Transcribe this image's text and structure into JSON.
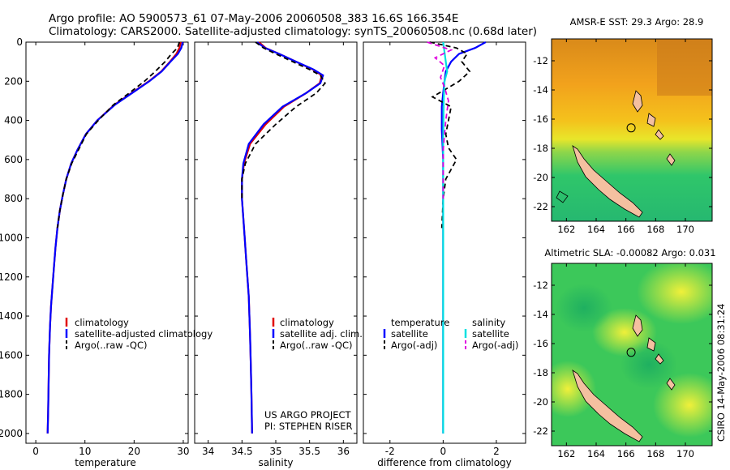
{
  "header": {
    "line1": "Argo profile: AO 5900573_61 07-May-2006 20060508_383 16.6S 166.354E",
    "line2": "Climatology: CARS2000. Satellite-adjusted climatology: synTS_20060508.nc (0.68d later)"
  },
  "colors": {
    "clim": "#e00000",
    "sat": "#0000ff",
    "argo": "#000000",
    "sal_sat": "#00e0e0",
    "sal_argo": "#e000e0"
  },
  "chart_data": [
    {
      "type": "line",
      "id": "temperature",
      "xlabel": "temperature",
      "ylabel": "",
      "xlim": [
        -2,
        31
      ],
      "ylim": [
        0,
        2050
      ],
      "y_reversed": true,
      "xticks": [
        0,
        10,
        20,
        30
      ],
      "yticks": [
        0,
        200,
        400,
        600,
        800,
        1000,
        1200,
        1400,
        1600,
        1800,
        2000
      ],
      "series": [
        {
          "name": "climatology",
          "style": "solid",
          "color_key": "clim",
          "x": [
            29.5,
            29.2,
            28.6,
            27.3,
            25.5,
            23,
            19.5,
            16,
            12.5,
            10.2,
            8.5,
            7.2,
            6.2,
            5.5,
            4.9,
            4.4,
            4.0,
            3.7,
            3.4,
            3.1,
            2.9,
            2.7,
            2.6,
            2.5,
            2.4
          ],
          "y": [
            0,
            30,
            60,
            100,
            150,
            200,
            260,
            320,
            400,
            470,
            550,
            620,
            700,
            780,
            860,
            950,
            1050,
            1150,
            1250,
            1350,
            1450,
            1600,
            1750,
            1900,
            2000
          ]
        },
        {
          "name": "satellite-adjusted climatology",
          "style": "solid",
          "color_key": "sat",
          "x": [
            29.9,
            29.6,
            28.9,
            27.4,
            25.6,
            23.1,
            19.6,
            16.1,
            12.5,
            10.2,
            8.5,
            7.2,
            6.2,
            5.5,
            4.9,
            4.4,
            4.0,
            3.7,
            3.4,
            3.1,
            2.9,
            2.7,
            2.6,
            2.5,
            2.4
          ],
          "y": [
            0,
            30,
            60,
            100,
            150,
            200,
            260,
            320,
            400,
            470,
            550,
            620,
            700,
            780,
            860,
            950,
            1050,
            1150,
            1250,
            1350,
            1450,
            1600,
            1750,
            1900,
            2000
          ]
        },
        {
          "name": "Argo(..raw -QC)",
          "style": "dashed",
          "color_key": "argo",
          "x": [
            29.2,
            28.8,
            27.6,
            26.3,
            24.3,
            22.1,
            19.0,
            15.8,
            12.7,
            10.3,
            8.7,
            7.3,
            6.2,
            5.5,
            4.9,
            4.4
          ],
          "y": [
            0,
            30,
            60,
            100,
            150,
            200,
            260,
            320,
            400,
            470,
            550,
            620,
            700,
            780,
            860,
            950
          ]
        }
      ],
      "legend": [
        "climatology",
        "satellite-adjusted climatology",
        "Argo(..raw -QC)"
      ]
    },
    {
      "type": "line",
      "id": "salinity",
      "xlabel": "salinity",
      "xlim": [
        33.8,
        36.2
      ],
      "ylim": [
        0,
        2050
      ],
      "y_reversed": true,
      "xticks": [
        34,
        34.5,
        35,
        35.5,
        36
      ],
      "series": [
        {
          "name": "climatology",
          "style": "solid",
          "color_key": "clim",
          "x": [
            34.75,
            34.85,
            35.05,
            35.3,
            35.55,
            35.68,
            35.65,
            35.45,
            35.12,
            34.85,
            34.62,
            34.53,
            34.5,
            34.5,
            34.52,
            34.54,
            34.56,
            34.58,
            34.6,
            34.61,
            34.62,
            34.63,
            34.64,
            34.65
          ],
          "y": [
            0,
            30,
            60,
            100,
            140,
            170,
            210,
            260,
            330,
            420,
            520,
            620,
            700,
            800,
            900,
            1000,
            1100,
            1200,
            1300,
            1400,
            1500,
            1650,
            1800,
            2000
          ]
        },
        {
          "name": "satellite adj. clim.",
          "style": "solid",
          "color_key": "sat",
          "x": [
            34.72,
            34.84,
            35.05,
            35.3,
            35.56,
            35.7,
            35.66,
            35.45,
            35.1,
            34.82,
            34.6,
            34.52,
            34.5,
            34.5,
            34.52,
            34.54,
            34.56,
            34.58,
            34.6,
            34.61,
            34.62,
            34.63,
            34.64,
            34.65
          ],
          "y": [
            0,
            30,
            60,
            100,
            140,
            170,
            210,
            260,
            330,
            420,
            520,
            620,
            700,
            800,
            900,
            1000,
            1100,
            1200,
            1300,
            1400,
            1500,
            1650,
            1800,
            2000
          ]
        },
        {
          "name": "Argo(..raw -QC)",
          "style": "dashed",
          "color_key": "argo",
          "x": [
            34.7,
            34.82,
            35.0,
            35.25,
            35.5,
            35.66,
            35.73,
            35.6,
            35.3,
            35.0,
            34.7,
            34.55,
            34.5,
            34.5
          ],
          "y": [
            0,
            30,
            60,
            100,
            140,
            170,
            210,
            260,
            330,
            420,
            520,
            620,
            700,
            800
          ]
        }
      ],
      "legend": [
        "climatology",
        "satellite adj. clim.",
        "Argo(..raw -QC)"
      ],
      "annotation": [
        "US ARGO PROJECT",
        "PI: STEPHEN RISER"
      ]
    },
    {
      "type": "line",
      "id": "difference",
      "xlabel": "difference from climatology",
      "xlim": [
        -3,
        3.1
      ],
      "ylim": [
        0,
        2050
      ],
      "y_reversed": true,
      "xticks": [
        -2,
        0,
        2
      ],
      "series": [
        {
          "name": "temperature satellite",
          "style": "solid",
          "color_key": "sat",
          "x": [
            1.6,
            1.2,
            0.6,
            0.3,
            0.1,
            0.05,
            0,
            -0.05,
            -0.05,
            0,
            0,
            0,
            0,
            0,
            0,
            0
          ],
          "y": [
            0,
            30,
            60,
            100,
            150,
            200,
            260,
            330,
            450,
            600,
            800,
            1000,
            1300,
            1600,
            1800,
            2000
          ]
        },
        {
          "name": "temperature Argo(-adj)",
          "style": "dashed",
          "color_key": "argo",
          "x": [
            -0.5,
            0.5,
            0.9,
            0.7,
            1.0,
            0.6,
            0.1,
            -0.4,
            0.3,
            0.2,
            0.1,
            0.2,
            0.5,
            0.3,
            0.1,
            0,
            -0.05
          ],
          "y": [
            0,
            30,
            60,
            100,
            150,
            200,
            240,
            280,
            330,
            400,
            470,
            540,
            600,
            650,
            700,
            800,
            950
          ]
        },
        {
          "name": "salinity satellite",
          "style": "solid",
          "color_key": "sal_sat",
          "x": [
            0,
            0.1,
            0.15,
            0.05,
            0.02,
            0,
            0,
            0,
            0,
            0
          ],
          "y": [
            0,
            100,
            150,
            200,
            300,
            500,
            800,
            1200,
            1600,
            2000
          ]
        },
        {
          "name": "salinity Argo(-adj)",
          "style": "dashed",
          "color_key": "sal_argo",
          "x": [
            -0.6,
            0.3,
            -0.3,
            0.05,
            -0.1,
            0.05,
            0.2,
            0.1,
            0,
            0,
            0
          ],
          "y": [
            0,
            40,
            80,
            120,
            180,
            230,
            300,
            400,
            550,
            700,
            800
          ]
        }
      ],
      "legend_temperature": {
        "heading": "temperature",
        "items": [
          "satellite",
          "Argo(-adj)"
        ]
      },
      "legend_salinity": {
        "heading": "salinity",
        "items": [
          "satellite",
          "Argo(-adj)"
        ]
      }
    },
    {
      "type": "heatmap",
      "id": "sst_map",
      "title": "AMSR-E SST: 29.3 Argo: 28.9",
      "xticks": [
        162,
        164,
        166,
        168,
        170
      ],
      "yticks": [
        -12,
        -14,
        -16,
        -18,
        -20,
        -22
      ],
      "xlim": [
        161,
        171.8
      ],
      "ylim": [
        -23,
        -10.5
      ],
      "marker": {
        "lon": 166.35,
        "lat": -16.6
      }
    },
    {
      "type": "heatmap",
      "id": "sla_map",
      "title": "Altimetric SLA: -0.00082 Argo: 0.031",
      "xticks": [
        162,
        164,
        166,
        168,
        170
      ],
      "yticks": [
        -12,
        -14,
        -16,
        -18,
        -20,
        -22
      ],
      "xlim": [
        161,
        171.8
      ],
      "ylim": [
        -23,
        -10.5
      ],
      "marker": {
        "lon": 166.35,
        "lat": -16.6
      }
    }
  ],
  "footer": {
    "stamp": "CSIRO 14-May-2006 08:31:24"
  }
}
